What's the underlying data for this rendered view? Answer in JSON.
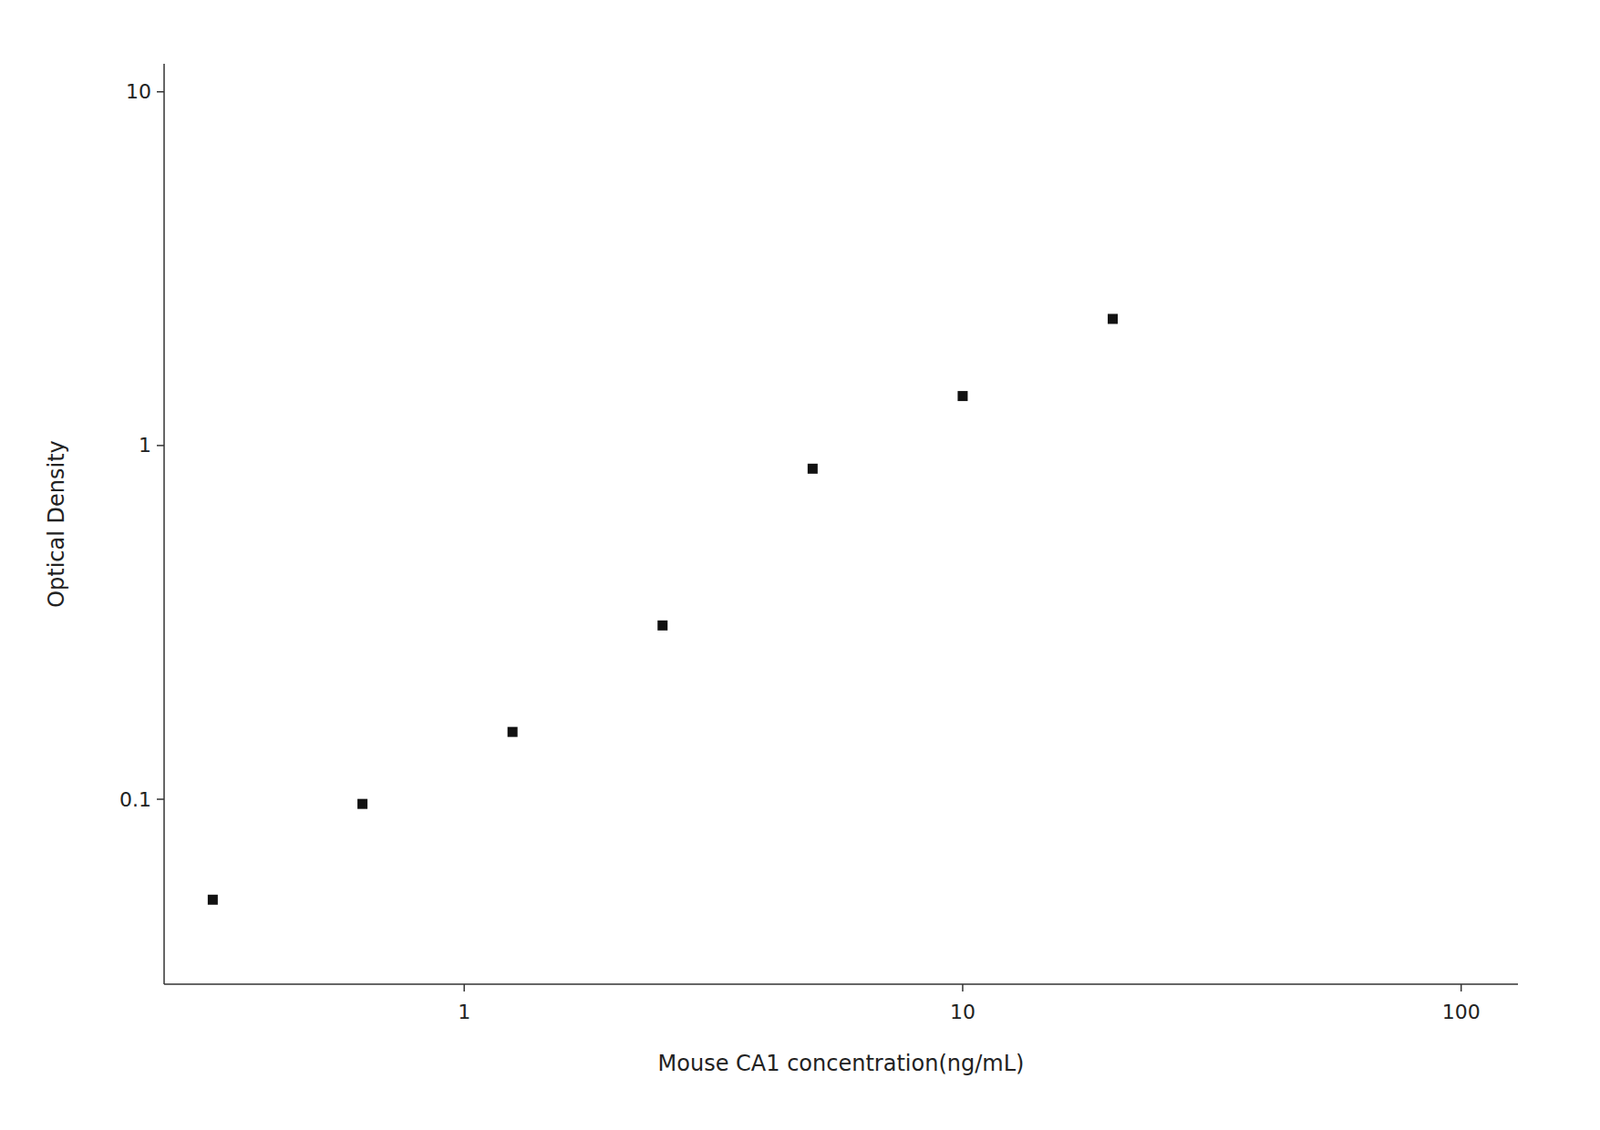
{
  "chart_data": {
    "type": "scatter",
    "x": [
      0.313,
      0.625,
      1.25,
      2.5,
      5.0,
      10.0,
      20.0
    ],
    "values": [
      0.052,
      0.097,
      0.155,
      0.31,
      0.86,
      1.38,
      2.28
    ],
    "xlabel": "Mouse CA1 concentration(ng/mL)",
    "ylabel": "Optical Density",
    "xlim": [
      0.25,
      130
    ],
    "ylim": [
      0.03,
      12
    ],
    "xticks": [
      1,
      10,
      100
    ],
    "yticks": [
      0.1,
      1,
      10
    ],
    "log": true,
    "grid": false,
    "color": "#111111",
    "marker": "square"
  }
}
